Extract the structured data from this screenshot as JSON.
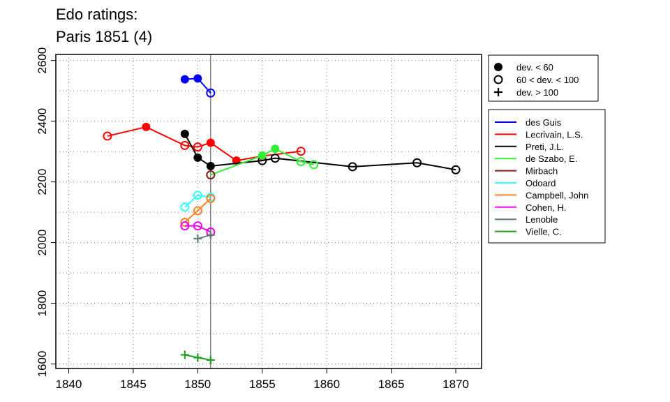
{
  "chart_data": {
    "type": "line",
    "title_line1": "Edo ratings:",
    "title_line2": "Paris 1851 (4)",
    "xlabel": "",
    "ylabel": "",
    "xlim": [
      1839,
      1872
    ],
    "ylim": [
      1585,
      2620
    ],
    "x_ticks": [
      1840,
      1845,
      1850,
      1855,
      1860,
      1865,
      1870
    ],
    "y_ticks": [
      1600,
      1800,
      2000,
      2200,
      2400,
      2600
    ],
    "reference_year": 1851,
    "grid": true,
    "symbol_legend": [
      {
        "marker": "filled",
        "label": "dev. < 60"
      },
      {
        "marker": "open",
        "label": "60 < dev. < 100"
      },
      {
        "marker": "plus",
        "label": "dev. > 100"
      }
    ],
    "series": [
      {
        "name": "des Guis",
        "color": "#0000ff",
        "points": [
          {
            "x": 1849,
            "y": 2538,
            "m": "filled"
          },
          {
            "x": 1850,
            "y": 2541,
            "m": "filled"
          },
          {
            "x": 1851,
            "y": 2493,
            "m": "open"
          }
        ]
      },
      {
        "name": "Lecrivain, L.S.",
        "color": "#ff0000",
        "points": [
          {
            "x": 1843,
            "y": 2351,
            "m": "open"
          },
          {
            "x": 1846,
            "y": 2381,
            "m": "filled"
          },
          {
            "x": 1849,
            "y": 2320,
            "m": "open"
          },
          {
            "x": 1850,
            "y": 2315,
            "m": "open"
          },
          {
            "x": 1851,
            "y": 2329,
            "m": "filled"
          },
          {
            "x": 1853,
            "y": 2270,
            "m": "filled"
          },
          {
            "x": 1855,
            "y": 2285,
            "m": "filled"
          },
          {
            "x": 1858,
            "y": 2301,
            "m": "open"
          }
        ]
      },
      {
        "name": "Preti, J.L.",
        "color": "#000000",
        "points": [
          {
            "x": 1849,
            "y": 2358,
            "m": "filled"
          },
          {
            "x": 1850,
            "y": 2280,
            "m": "filled"
          },
          {
            "x": 1851,
            "y": 2252,
            "m": "filled"
          },
          {
            "x": 1855,
            "y": 2270,
            "m": "open"
          },
          {
            "x": 1856,
            "y": 2278,
            "m": "open"
          },
          {
            "x": 1862,
            "y": 2250,
            "m": "open"
          },
          {
            "x": 1867,
            "y": 2263,
            "m": "open"
          },
          {
            "x": 1870,
            "y": 2240,
            "m": "open"
          }
        ]
      },
      {
        "name": "de Szabo, E.",
        "color": "#33ee33",
        "points": [
          {
            "x": 1851,
            "y": 2223,
            "m": "open"
          },
          {
            "x": 1855,
            "y": 2287,
            "m": "filled"
          },
          {
            "x": 1856,
            "y": 2309,
            "m": "filled"
          },
          {
            "x": 1858,
            "y": 2267,
            "m": "open"
          },
          {
            "x": 1859,
            "y": 2257,
            "m": "open"
          }
        ]
      },
      {
        "name": "Mirbach",
        "color": "#8b1a1a",
        "points": [
          {
            "x": 1851,
            "y": 2223,
            "m": "open"
          }
        ]
      },
      {
        "name": "Odoard",
        "color": "#33ffff",
        "points": [
          {
            "x": 1849,
            "y": 2117,
            "m": "open"
          },
          {
            "x": 1850,
            "y": 2156,
            "m": "open"
          },
          {
            "x": 1851,
            "y": 2149,
            "m": "open"
          }
        ]
      },
      {
        "name": "Campbell, John",
        "color": "#ff7f24",
        "points": [
          {
            "x": 1849,
            "y": 2067,
            "m": "open"
          },
          {
            "x": 1850,
            "y": 2105,
            "m": "open"
          },
          {
            "x": 1851,
            "y": 2145,
            "m": "open"
          }
        ]
      },
      {
        "name": "Cohen, H.",
        "color": "#ee00ee",
        "points": [
          {
            "x": 1849,
            "y": 2055,
            "m": "open"
          },
          {
            "x": 1850,
            "y": 2055,
            "m": "open"
          },
          {
            "x": 1851,
            "y": 2035,
            "m": "open"
          }
        ]
      },
      {
        "name": "Lenoble",
        "color": "#607b7b",
        "points": [
          {
            "x": 1850,
            "y": 2013,
            "m": "plus"
          },
          {
            "x": 1851,
            "y": 2025,
            "m": "plus"
          }
        ]
      },
      {
        "name": "Vielle, C.",
        "color": "#1f9f1f",
        "points": [
          {
            "x": 1849,
            "y": 1630,
            "m": "plus"
          },
          {
            "x": 1850,
            "y": 1621,
            "m": "plus"
          },
          {
            "x": 1851,
            "y": 1613,
            "m": "plus"
          }
        ]
      }
    ]
  }
}
